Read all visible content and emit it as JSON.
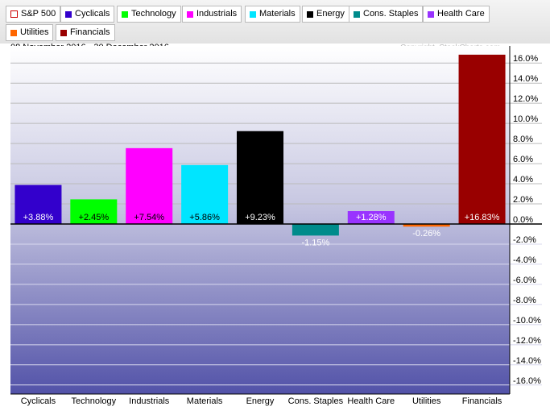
{
  "legend": [
    {
      "label": "S&P 500",
      "color": "#cc0000",
      "outline": true
    },
    {
      "label": "Cyclicals",
      "color": "#3300cc"
    },
    {
      "label": "Technology",
      "color": "#00ff00"
    },
    {
      "label": "Industrials",
      "color": "#ff00ff"
    },
    {
      "label": "Materials",
      "color": "#00e5ff"
    },
    {
      "label": "Energy",
      "color": "#000000"
    },
    {
      "label": "Cons. Staples",
      "color": "#008b8b"
    },
    {
      "label": "Health Care",
      "color": "#9933ff"
    },
    {
      "label": "Utilities",
      "color": "#ff6600"
    },
    {
      "label": "Financials",
      "color": "#990000"
    }
  ],
  "date_range": "08 November 2016 - 30 December 2016",
  "copyright": "Copyright, StockCharts.com",
  "chart_data": {
    "type": "bar",
    "categories": [
      "Cyclicals",
      "Technology",
      "Industrials",
      "Materials",
      "Energy",
      "Cons. Staples",
      "Health Care",
      "Utilities",
      "Financials"
    ],
    "values": [
      3.88,
      2.45,
      7.54,
      5.86,
      9.23,
      -1.15,
      1.28,
      -0.26,
      16.83
    ],
    "data_labels": [
      "+3.88%",
      "+2.45%",
      "+7.54%",
      "+5.86%",
      "+9.23%",
      "-1.15%",
      "+1.28%",
      "-0.26%",
      "+16.83%"
    ],
    "colors": [
      "#3300cc",
      "#00ff00",
      "#ff00ff",
      "#00e5ff",
      "#000000",
      "#008b8b",
      "#9933ff",
      "#ff6600",
      "#990000"
    ],
    "label_colors": [
      "#ffffff",
      "#000000",
      "#000000",
      "#000000",
      "#ffffff",
      "#ffffff",
      "#ffffff",
      "#ffffff",
      "#ffffff"
    ],
    "yticks": [
      "16.0%",
      "14.0%",
      "12.0%",
      "10.0%",
      "8.0%",
      "6.0%",
      "4.0%",
      "2.0%",
      "0.0%",
      "-2.0%",
      "-4.0%",
      "-6.0%",
      "-8.0%",
      "-10.0%",
      "-12.0%",
      "-14.0%",
      "-16.0%"
    ],
    "ytick_values": [
      16,
      14,
      12,
      10,
      8,
      6,
      4,
      2,
      0,
      -2,
      -4,
      -6,
      -8,
      -10,
      -12,
      -14,
      -16
    ],
    "ylim": [
      -16.9,
      17.7
    ],
    "grid": true,
    "yaxis_position": "right",
    "legend_placement": "top"
  }
}
